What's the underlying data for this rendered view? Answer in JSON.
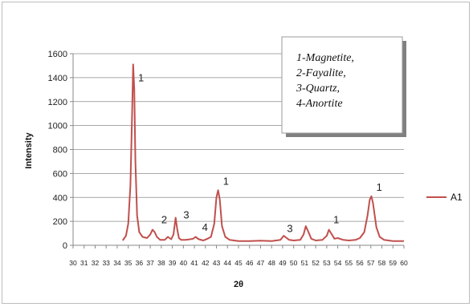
{
  "chart_data": {
    "type": "line",
    "xlabel": "2θ",
    "ylabel": "Intensity",
    "xlim": [
      30,
      60
    ],
    "ylim": [
      0,
      1600
    ],
    "y_ticks": [
      0,
      200,
      400,
      600,
      800,
      1000,
      1200,
      1400,
      1600
    ],
    "x_ticks": [
      30,
      31,
      32,
      33,
      34,
      35,
      36,
      37,
      38,
      39,
      40,
      41,
      42,
      43,
      44,
      45,
      46,
      47,
      48,
      49,
      50,
      51,
      52,
      53,
      54,
      55,
      56,
      57,
      58,
      59,
      60
    ],
    "grid": "horizontal",
    "legend_position": "right",
    "series": [
      {
        "name": "A1",
        "color": "#c0504d",
        "x": [
          34.5,
          34.8,
          35.0,
          35.2,
          35.35,
          35.45,
          35.55,
          35.65,
          35.8,
          36.0,
          36.3,
          36.7,
          37.0,
          37.2,
          37.4,
          37.6,
          37.9,
          38.3,
          38.6,
          38.9,
          39.1,
          39.3,
          39.45,
          39.6,
          39.8,
          40.2,
          40.6,
          40.9,
          41.1,
          41.4,
          41.8,
          42.2,
          42.5,
          42.8,
          43.0,
          43.15,
          43.3,
          43.5,
          43.8,
          44.2,
          45.0,
          46.0,
          47.0,
          48.0,
          48.8,
          49.1,
          49.3,
          49.6,
          50.0,
          50.6,
          50.9,
          51.1,
          51.3,
          51.6,
          52.0,
          52.6,
          53.0,
          53.2,
          53.4,
          53.7,
          54.0,
          54.5,
          55.0,
          55.6,
          56.0,
          56.4,
          56.7,
          56.9,
          57.05,
          57.2,
          57.5,
          57.8,
          58.2,
          59.0,
          60.0
        ],
        "values": [
          40,
          80,
          180,
          500,
          1100,
          1510,
          1300,
          700,
          250,
          110,
          70,
          60,
          90,
          130,
          110,
          70,
          45,
          45,
          70,
          50,
          90,
          230,
          130,
          60,
          45,
          45,
          50,
          55,
          70,
          50,
          40,
          55,
          70,
          180,
          400,
          460,
          380,
          160,
          70,
          45,
          35,
          35,
          38,
          35,
          45,
          80,
          65,
          45,
          40,
          45,
          90,
          160,
          120,
          55,
          40,
          45,
          80,
          130,
          100,
          55,
          60,
          45,
          40,
          45,
          60,
          110,
          250,
          380,
          410,
          350,
          150,
          70,
          45,
          35,
          35
        ]
      }
    ],
    "annotations": [
      {
        "text": "1",
        "x": 35.9,
        "y": 1370
      },
      {
        "text": "2",
        "x": 38.0,
        "y": 185
      },
      {
        "text": "3",
        "x": 40.0,
        "y": 225
      },
      {
        "text": "4",
        "x": 41.7,
        "y": 120
      },
      {
        "text": "1",
        "x": 43.6,
        "y": 505
      },
      {
        "text": "3",
        "x": 49.4,
        "y": 110
      },
      {
        "text": "1",
        "x": 53.6,
        "y": 185
      },
      {
        "text": "1",
        "x": 57.5,
        "y": 455
      }
    ],
    "note_lines": [
      "1-Magnetite,",
      "2-Fayalite,",
      "3-Quartz,",
      "4-Anortite"
    ]
  }
}
